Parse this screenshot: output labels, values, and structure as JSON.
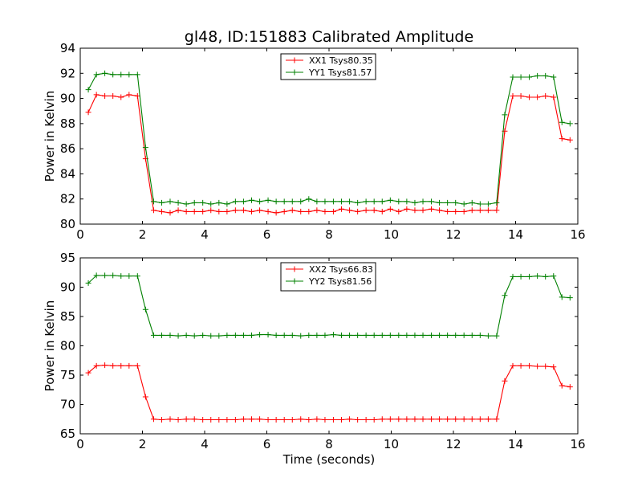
{
  "title": "gl48, ID:151883 Calibrated Amplitude",
  "chart_data": [
    {
      "type": "line",
      "title": "gl48, ID:151883 Calibrated Amplitude",
      "xlabel": "",
      "ylabel": "Power in Kelvin",
      "xlim": [
        0,
        16
      ],
      "ylim": [
        80,
        94
      ],
      "xticks": [
        "0",
        "2",
        "4",
        "6",
        "8",
        "10",
        "12",
        "14",
        "16"
      ],
      "yticks": [
        "80",
        "82",
        "84",
        "86",
        "88",
        "90",
        "92",
        "94"
      ],
      "legend_position": "top-center",
      "grid": false,
      "x": [
        0.26,
        0.52,
        0.79,
        1.05,
        1.31,
        1.57,
        1.84,
        2.1,
        2.36,
        2.62,
        2.89,
        3.15,
        3.41,
        3.67,
        3.94,
        4.2,
        4.46,
        4.72,
        4.99,
        5.25,
        5.51,
        5.77,
        6.04,
        6.3,
        6.56,
        6.82,
        7.09,
        7.35,
        7.61,
        7.87,
        8.14,
        8.4,
        8.66,
        8.92,
        9.19,
        9.45,
        9.71,
        9.97,
        10.24,
        10.5,
        10.76,
        11.02,
        11.29,
        11.55,
        11.81,
        12.07,
        12.34,
        12.6,
        12.86,
        13.12,
        13.39,
        13.65,
        13.91,
        14.17,
        14.44,
        14.7,
        14.96,
        15.22,
        15.49,
        15.75
      ],
      "series": [
        {
          "name": "XX1 Tsys80.35",
          "color": "#ff0000",
          "values": [
            88.9,
            90.3,
            90.2,
            90.2,
            90.1,
            90.3,
            90.2,
            85.2,
            81.1,
            81.0,
            80.9,
            81.1,
            81.0,
            81.0,
            81.0,
            81.1,
            81.0,
            81.0,
            81.1,
            81.1,
            81.0,
            81.1,
            81.0,
            80.9,
            81.0,
            81.1,
            81.0,
            81.0,
            81.1,
            81.0,
            81.0,
            81.2,
            81.1,
            81.0,
            81.1,
            81.1,
            81.0,
            81.2,
            81.0,
            81.2,
            81.1,
            81.1,
            81.2,
            81.1,
            81.0,
            81.0,
            81.0,
            81.1,
            81.1,
            81.1,
            81.1,
            87.4,
            90.2,
            90.2,
            90.1,
            90.1,
            90.2,
            90.1,
            86.8,
            86.7
          ]
        },
        {
          "name": "YY1 Tsys81.57",
          "color": "#008000",
          "values": [
            90.7,
            91.9,
            92.0,
            91.9,
            91.9,
            91.9,
            91.9,
            86.1,
            81.8,
            81.7,
            81.8,
            81.7,
            81.6,
            81.7,
            81.7,
            81.6,
            81.7,
            81.6,
            81.8,
            81.8,
            81.9,
            81.8,
            81.9,
            81.8,
            81.8,
            81.8,
            81.8,
            82.0,
            81.8,
            81.8,
            81.8,
            81.8,
            81.8,
            81.7,
            81.8,
            81.8,
            81.8,
            81.9,
            81.8,
            81.8,
            81.7,
            81.8,
            81.8,
            81.7,
            81.7,
            81.7,
            81.6,
            81.7,
            81.6,
            81.6,
            81.7,
            88.7,
            91.7,
            91.7,
            91.7,
            91.8,
            91.8,
            91.7,
            88.1,
            88.0
          ]
        }
      ]
    },
    {
      "type": "line",
      "title": "",
      "xlabel": "Time (seconds)",
      "ylabel": "Power in Kelvin",
      "xlim": [
        0,
        16
      ],
      "ylim": [
        65,
        95
      ],
      "xticks": [
        "0",
        "2",
        "4",
        "6",
        "8",
        "10",
        "12",
        "14",
        "16"
      ],
      "yticks": [
        "65",
        "70",
        "75",
        "80",
        "85",
        "90",
        "95"
      ],
      "legend_position": "top-center",
      "grid": false,
      "x": [
        0.26,
        0.52,
        0.79,
        1.05,
        1.31,
        1.57,
        1.84,
        2.1,
        2.36,
        2.62,
        2.89,
        3.15,
        3.41,
        3.67,
        3.94,
        4.2,
        4.46,
        4.72,
        4.99,
        5.25,
        5.51,
        5.77,
        6.04,
        6.3,
        6.56,
        6.82,
        7.09,
        7.35,
        7.61,
        7.87,
        8.14,
        8.4,
        8.66,
        8.92,
        9.19,
        9.45,
        9.71,
        9.97,
        10.24,
        10.5,
        10.76,
        11.02,
        11.29,
        11.55,
        11.81,
        12.07,
        12.34,
        12.6,
        12.86,
        13.12,
        13.39,
        13.65,
        13.91,
        14.17,
        14.44,
        14.7,
        14.96,
        15.22,
        15.49,
        15.75
      ],
      "series": [
        {
          "name": "XX2 Tsys66.83",
          "color": "#ff0000",
          "values": [
            75.4,
            76.6,
            76.7,
            76.6,
            76.6,
            76.6,
            76.6,
            71.3,
            67.5,
            67.4,
            67.5,
            67.4,
            67.5,
            67.5,
            67.4,
            67.4,
            67.4,
            67.4,
            67.4,
            67.5,
            67.5,
            67.5,
            67.4,
            67.4,
            67.4,
            67.4,
            67.5,
            67.4,
            67.5,
            67.4,
            67.4,
            67.4,
            67.5,
            67.4,
            67.4,
            67.4,
            67.5,
            67.5,
            67.5,
            67.5,
            67.5,
            67.5,
            67.5,
            67.5,
            67.5,
            67.5,
            67.5,
            67.5,
            67.5,
            67.5,
            67.5,
            74.0,
            76.6,
            76.6,
            76.6,
            76.5,
            76.5,
            76.4,
            73.2,
            73.0
          ]
        },
        {
          "name": "YY2 Tsys81.56",
          "color": "#008000",
          "values": [
            90.7,
            92.0,
            92.0,
            92.0,
            91.9,
            91.9,
            91.9,
            86.2,
            81.8,
            81.8,
            81.8,
            81.7,
            81.8,
            81.7,
            81.8,
            81.7,
            81.7,
            81.8,
            81.8,
            81.8,
            81.8,
            81.9,
            81.9,
            81.8,
            81.8,
            81.8,
            81.7,
            81.8,
            81.8,
            81.8,
            81.9,
            81.8,
            81.8,
            81.8,
            81.8,
            81.8,
            81.8,
            81.8,
            81.8,
            81.8,
            81.8,
            81.8,
            81.8,
            81.8,
            81.8,
            81.8,
            81.8,
            81.8,
            81.8,
            81.7,
            81.7,
            88.6,
            91.8,
            91.8,
            91.8,
            91.9,
            91.8,
            91.9,
            88.3,
            88.2
          ]
        }
      ]
    }
  ]
}
